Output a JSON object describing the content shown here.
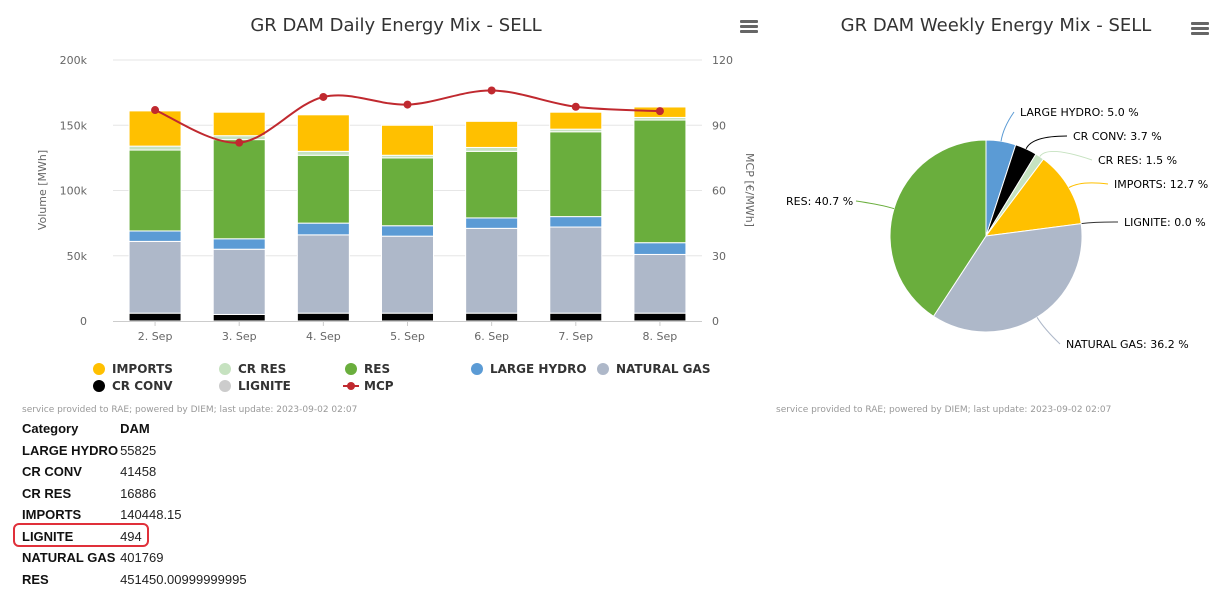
{
  "chart_data": [
    {
      "type": "bar",
      "stacked": true,
      "title": "GR DAM Daily Energy Mix - SELL",
      "xlabel": "",
      "ylabel": "Volume [MWh]",
      "ylabel_right": "MCP [€/MWh]",
      "ylim": [
        0,
        200000
      ],
      "ylim_right": [
        0,
        120
      ],
      "yticks": [
        "0",
        "50k",
        "100k",
        "150k",
        "200k"
      ],
      "yticks_right": [
        "0",
        "30",
        "60",
        "90",
        "120"
      ],
      "categories": [
        "2. Sep",
        "3. Sep",
        "4. Sep",
        "5. Sep",
        "6. Sep",
        "7. Sep",
        "8. Sep"
      ],
      "series": [
        {
          "name": "CR CONV",
          "color": "#000000",
          "values": [
            6000,
            5000,
            6000,
            6000,
            6000,
            6000,
            6000
          ]
        },
        {
          "name": "LIGNITE",
          "color": "#cccccc",
          "hidden": true,
          "values": [
            0,
            0,
            0,
            0,
            0,
            0,
            0
          ]
        },
        {
          "name": "NATURAL GAS",
          "color": "#aeb8c9",
          "values": [
            55000,
            50000,
            60000,
            59000,
            65000,
            66000,
            45000
          ]
        },
        {
          "name": "LARGE HYDRO",
          "color": "#5b9bd5",
          "values": [
            8000,
            8000,
            9000,
            8000,
            8000,
            8000,
            9000
          ]
        },
        {
          "name": "RES",
          "color": "#6aae3d",
          "values": [
            62000,
            76000,
            52000,
            52000,
            51000,
            65000,
            94000
          ]
        },
        {
          "name": "CR RES",
          "color": "#c6e2c0",
          "values": [
            3000,
            3000,
            3000,
            2000,
            3000,
            2000,
            2000
          ]
        },
        {
          "name": "IMPORTS",
          "color": "#ffc000",
          "values": [
            27000,
            18000,
            28000,
            23000,
            20000,
            13000,
            8000
          ]
        }
      ],
      "line_series": {
        "name": "MCP",
        "color": "#c0292f",
        "axis": "right",
        "values": [
          97,
          82,
          103,
          99.5,
          106,
          98.5,
          96.5
        ]
      },
      "legend": [
        {
          "name": "IMPORTS",
          "color": "#ffc000",
          "symbol": "circle"
        },
        {
          "name": "CR RES",
          "color": "#c6e2c0",
          "symbol": "circle"
        },
        {
          "name": "RES",
          "color": "#6aae3d",
          "symbol": "circle"
        },
        {
          "name": "LARGE HYDRO",
          "color": "#5b9bd5",
          "symbol": "circle"
        },
        {
          "name": "NATURAL GAS",
          "color": "#aeb8c9",
          "symbol": "circle"
        },
        {
          "name": "CR CONV",
          "color": "#000000",
          "symbol": "circle"
        },
        {
          "name": "LIGNITE",
          "color": "#cccccc",
          "symbol": "circle",
          "hidden": true
        },
        {
          "name": "MCP",
          "color": "#c0292f",
          "symbol": "line"
        }
      ],
      "legend_position": "bottom",
      "credits": "service provided to RAE; powered by DIEM; last update: 2023-09-02 02:07"
    },
    {
      "type": "pie",
      "title": "GR DAM Weekly Energy Mix - SELL",
      "start_angle": 0,
      "slices": [
        {
          "name": "LARGE HYDRO",
          "value": 5.0,
          "label": "LARGE HYDRO: 5.0 %",
          "color": "#5b9bd5"
        },
        {
          "name": "CR CONV",
          "value": 3.7,
          "label": "CR CONV: 3.7 %",
          "color": "#000000"
        },
        {
          "name": "CR RES",
          "value": 1.5,
          "label": "CR RES: 1.5 %",
          "color": "#c6e2c0"
        },
        {
          "name": "IMPORTS",
          "value": 12.7,
          "label": "IMPORTS: 12.7 %",
          "color": "#ffc000"
        },
        {
          "name": "LIGNITE",
          "value": 0.0,
          "label": "LIGNITE: 0.0 %",
          "color": "#cccccc"
        },
        {
          "name": "NATURAL GAS",
          "value": 36.2,
          "label": "NATURAL GAS: 36.2 %",
          "color": "#aeb8c9"
        },
        {
          "name": "RES",
          "value": 40.7,
          "label": "RES: 40.7 %",
          "color": "#6aae3d"
        }
      ],
      "credits": "service provided to RAE; powered by DIEM; last update: 2023-09-02 02:07"
    }
  ],
  "table": {
    "headers": [
      "Category",
      "DAM"
    ],
    "rows": [
      [
        "LARGE HYDRO",
        "55825"
      ],
      [
        "CR CONV",
        "41458"
      ],
      [
        "CR RES",
        "16886"
      ],
      [
        "IMPORTS",
        "140448.15"
      ],
      [
        "LIGNITE",
        "494"
      ],
      [
        "NATURAL GAS",
        "401769"
      ],
      [
        "RES",
        "451450.00999999995"
      ]
    ],
    "highlighted_row": "LIGNITE"
  }
}
